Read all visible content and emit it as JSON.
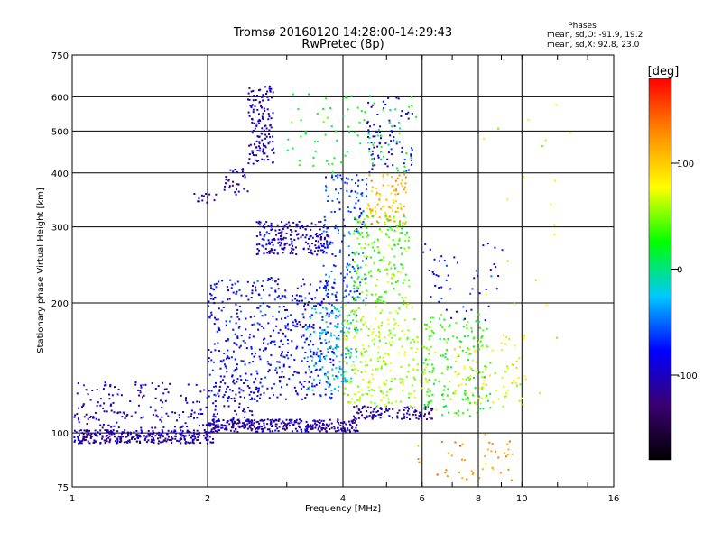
{
  "chart_data": {
    "type": "scatter",
    "title": "Tromsø 20160120 14:28:00-14:29:43",
    "subtitle": "RwPretec (8p)",
    "xlabel": "Frequency [MHz]",
    "ylabel": "Stationary phase Virtual Height [km]",
    "x_scale": "log",
    "y_scale": "log",
    "xlim": [
      1,
      16
    ],
    "ylim": [
      75,
      750
    ],
    "x_ticks": [
      1,
      2,
      4,
      6,
      8,
      10,
      16
    ],
    "y_ticks": [
      75,
      100,
      200,
      300,
      400,
      500,
      600,
      750
    ],
    "grid": true,
    "stats": {
      "title": "Phases",
      "line1": "mean, sd,O: -91.9, 19.2",
      "line2": "mean, sd,X:  92.8, 23.0"
    },
    "colorbar": {
      "label": "[deg]",
      "ticks": [
        100,
        0,
        -100
      ],
      "range": [
        -180,
        180
      ],
      "colors": [
        "#000000",
        "#3a0070",
        "#0000ff",
        "#00c8ff",
        "#00ff00",
        "#ffff00",
        "#ff8c00",
        "#ff0000"
      ]
    },
    "clusters": [
      {
        "f": [
          1.0,
          2.05
        ],
        "h": [
          95,
          102
        ],
        "n": 320,
        "p": -110
      },
      {
        "f": [
          2.0,
          4.3
        ],
        "h": [
          101,
          108
        ],
        "n": 320,
        "p": -110
      },
      {
        "f": [
          4.2,
          6.3
        ],
        "h": [
          108,
          116
        ],
        "n": 110,
        "p": -110
      },
      {
        "f": [
          1.0,
          2.6
        ],
        "h": [
          103,
          132
        ],
        "n": 230,
        "p": -100
      },
      {
        "f": [
          1.85,
          2.15
        ],
        "h": [
          340,
          360
        ],
        "n": 14,
        "p": -100
      },
      {
        "f": [
          2.15,
          2.45
        ],
        "h": [
          355,
          420
        ],
        "n": 30,
        "p": -105
      },
      {
        "f": [
          2.45,
          2.8
        ],
        "h": [
          420,
          640
        ],
        "n": 140,
        "p": -105
      },
      {
        "f": [
          2.55,
          3.7
        ],
        "h": [
          260,
          310
        ],
        "n": 200,
        "p": -100
      },
      {
        "f": [
          2.0,
          3.9
        ],
        "h": [
          120,
          230
        ],
        "n": 520,
        "p": -80
      },
      {
        "f": [
          3.3,
          4.3
        ],
        "h": [
          125,
          200
        ],
        "n": 150,
        "p": -20
      },
      {
        "f": [
          3.6,
          4.5
        ],
        "h": [
          200,
          400
        ],
        "n": 170,
        "p": -60
      },
      {
        "f": [
          4.2,
          5.6
        ],
        "h": [
          200,
          320
        ],
        "n": 180,
        "p": 40
      },
      {
        "f": [
          4.5,
          5.5
        ],
        "h": [
          300,
          400
        ],
        "n": 90,
        "p": 110
      },
      {
        "f": [
          4.0,
          6.2
        ],
        "h": [
          115,
          200
        ],
        "n": 260,
        "p": 60
      },
      {
        "f": [
          4.5,
          5.7
        ],
        "h": [
          400,
          600
        ],
        "n": 80,
        "p": -90
      },
      {
        "f": [
          3.0,
          5.8
        ],
        "h": [
          400,
          620
        ],
        "n": 90,
        "p": 20
      },
      {
        "f": [
          6.0,
          8.5
        ],
        "h": [
          110,
          190
        ],
        "n": 160,
        "p": 30
      },
      {
        "f": [
          7.0,
          10.2
        ],
        "h": [
          115,
          170
        ],
        "n": 90,
        "p": 80
      },
      {
        "f": [
          6.0,
          9.0
        ],
        "h": [
          180,
          280
        ],
        "n": 50,
        "p": -80
      },
      {
        "f": [
          5.8,
          9.5
        ],
        "h": [
          78,
          100
        ],
        "n": 45,
        "p": 120
      },
      {
        "f": [
          8.0,
          13.0
        ],
        "h": [
          120,
          600
        ],
        "n": 22,
        "p": 60
      }
    ]
  }
}
